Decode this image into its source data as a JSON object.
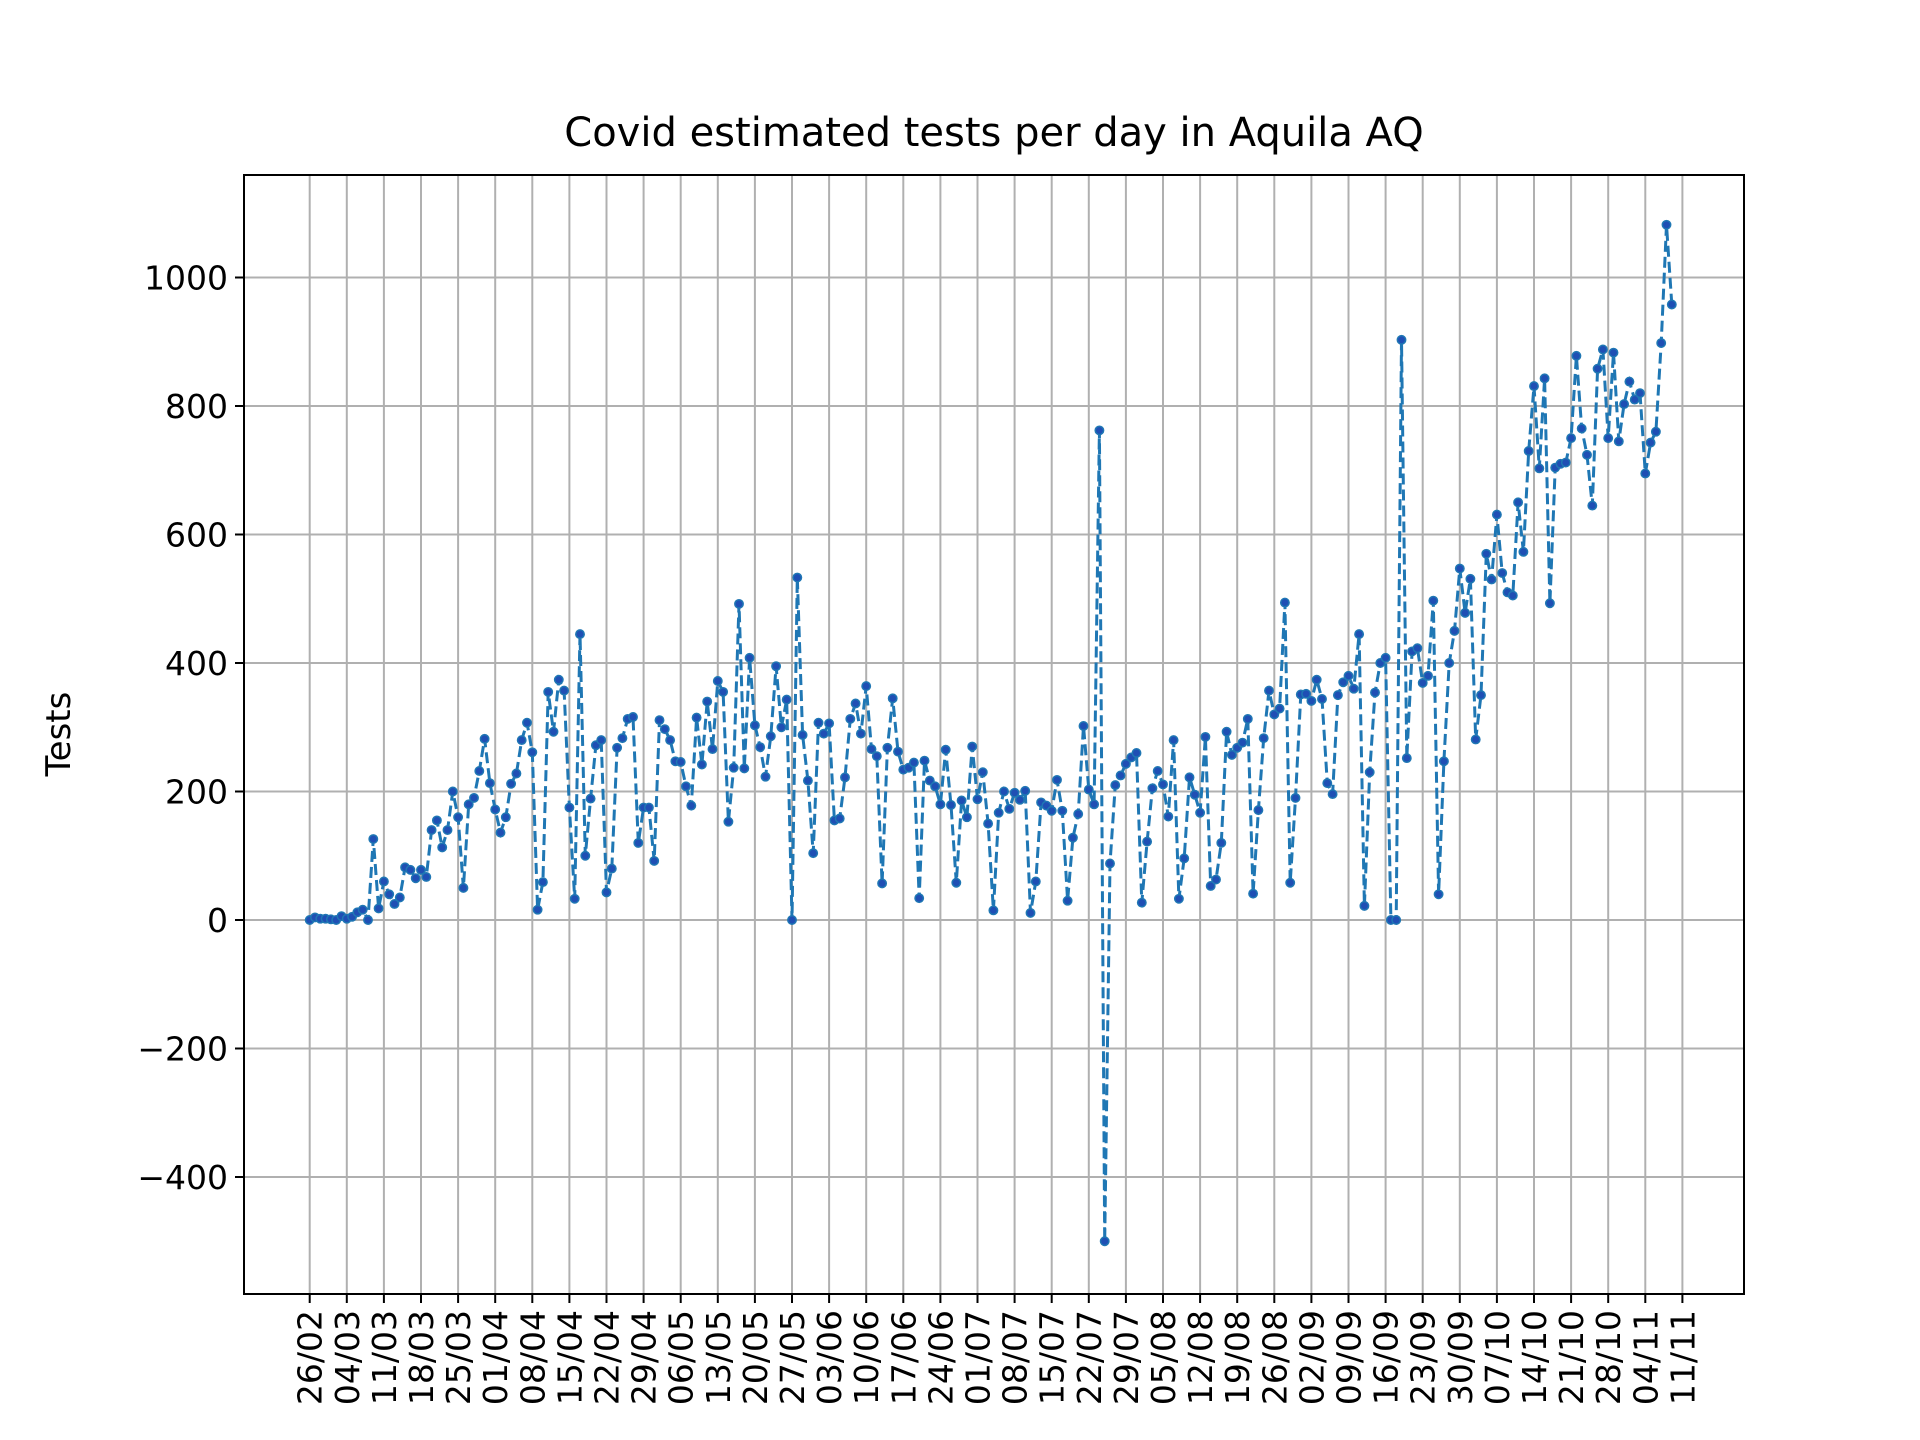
{
  "chart_data": {
    "type": "line",
    "title": "Covid estimated tests per day in Aquila AQ",
    "xlabel": "",
    "ylabel": "Tests",
    "ylim": [
      -575,
      1160
    ],
    "yticks": [
      -400,
      -200,
      0,
      200,
      400,
      600,
      800,
      1000
    ],
    "ytick_labels": [
      "−400",
      "−200",
      "0",
      "200",
      "400",
      "600",
      "800",
      "1000"
    ],
    "xtick_labels": [
      "26/02",
      "04/03",
      "11/03",
      "18/03",
      "25/03",
      "01/04",
      "08/04",
      "15/04",
      "22/04",
      "29/04",
      "06/05",
      "13/05",
      "20/05",
      "27/05",
      "03/06",
      "10/06",
      "17/06",
      "24/06",
      "01/07",
      "08/07",
      "15/07",
      "22/07",
      "29/07",
      "05/08",
      "12/08",
      "19/08",
      "26/08",
      "02/09",
      "09/09",
      "16/09",
      "23/09",
      "30/09",
      "07/10",
      "14/10",
      "21/10",
      "28/10",
      "04/11",
      "11/11"
    ],
    "grid": true,
    "series": [
      {
        "color": "#1f77b4",
        "marker_color": "#1f4fb4",
        "linestyle": "dashed",
        "start_label": "26/02",
        "values": [
          0,
          4,
          2,
          2,
          1,
          0,
          6,
          2,
          5,
          12,
          16,
          0,
          126,
          18,
          60,
          40,
          25,
          35,
          82,
          78,
          65,
          78,
          67,
          140,
          155,
          113,
          140,
          200,
          160,
          50,
          180,
          190,
          232,
          282,
          213,
          172,
          136,
          160,
          212,
          228,
          280,
          307,
          261,
          16,
          59,
          355,
          293,
          374,
          357,
          175,
          33,
          445,
          100,
          189,
          272,
          280,
          43,
          80,
          268,
          283,
          313,
          316,
          120,
          175,
          175,
          92,
          311,
          297,
          280,
          247,
          246,
          208,
          178,
          315,
          242,
          340,
          266,
          372,
          355,
          153,
          237,
          492,
          236,
          408,
          303,
          269,
          223,
          286,
          395,
          300,
          343,
          0,
          533,
          288,
          217,
          104,
          307,
          290,
          306,
          155,
          158,
          222,
          313,
          337,
          290,
          364,
          266,
          255,
          57,
          268,
          345,
          262,
          234,
          237,
          245,
          34,
          248,
          217,
          208,
          180,
          265,
          179,
          58,
          186,
          160,
          270,
          188,
          230,
          150,
          15,
          167,
          200,
          173,
          198,
          187,
          201,
          11,
          60,
          183,
          178,
          170,
          218,
          170,
          30,
          128,
          165,
          302,
          203,
          180,
          762,
          -500,
          88,
          210,
          225,
          243,
          253,
          260,
          27,
          122,
          205,
          232,
          211,
          161,
          280,
          33,
          96,
          222,
          195,
          167,
          285,
          53,
          63,
          120,
          293,
          257,
          268,
          276,
          313,
          41,
          171,
          283,
          357,
          320,
          329,
          494,
          58,
          190,
          351,
          352,
          341,
          374,
          344,
          213,
          196,
          350,
          370,
          380,
          360,
          445,
          22,
          230,
          354,
          400,
          408,
          0,
          0,
          903,
          252,
          418,
          423,
          369,
          380,
          497,
          40,
          247,
          400,
          450,
          547,
          478,
          531,
          281,
          350,
          570,
          530,
          631,
          540,
          510,
          505,
          650,
          573,
          730,
          831,
          703,
          843,
          493,
          704,
          710,
          712,
          750,
          878,
          765,
          724,
          645,
          858,
          888,
          750,
          883,
          745,
          803,
          838,
          810,
          820,
          695,
          743,
          760,
          898,
          1082,
          958
        ]
      }
    ]
  }
}
